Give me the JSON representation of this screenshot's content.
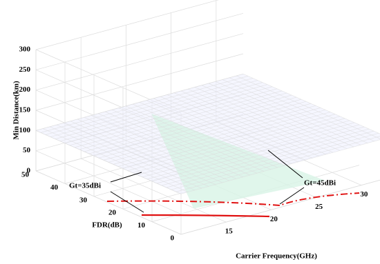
{
  "chart_data": {
    "type": "surface",
    "xlabel": "Carrier Frequency(GHz)",
    "ylabel": "FDR(dB)",
    "zlabel": "Min Distance(km)",
    "xlim": [
      10,
      33
    ],
    "xticks": [
      15,
      20,
      25,
      30
    ],
    "ylim": [
      0,
      50
    ],
    "yticks": [
      0,
      10,
      20,
      30,
      40,
      50
    ],
    "zlim": [
      0,
      300
    ],
    "zticks": [
      0,
      50,
      100,
      150,
      200,
      250,
      300
    ],
    "grid": true,
    "surface_color": "#3a3ad0",
    "annotations": [
      "Gt=35dBi",
      "Gt=45dBi"
    ]
  }
}
